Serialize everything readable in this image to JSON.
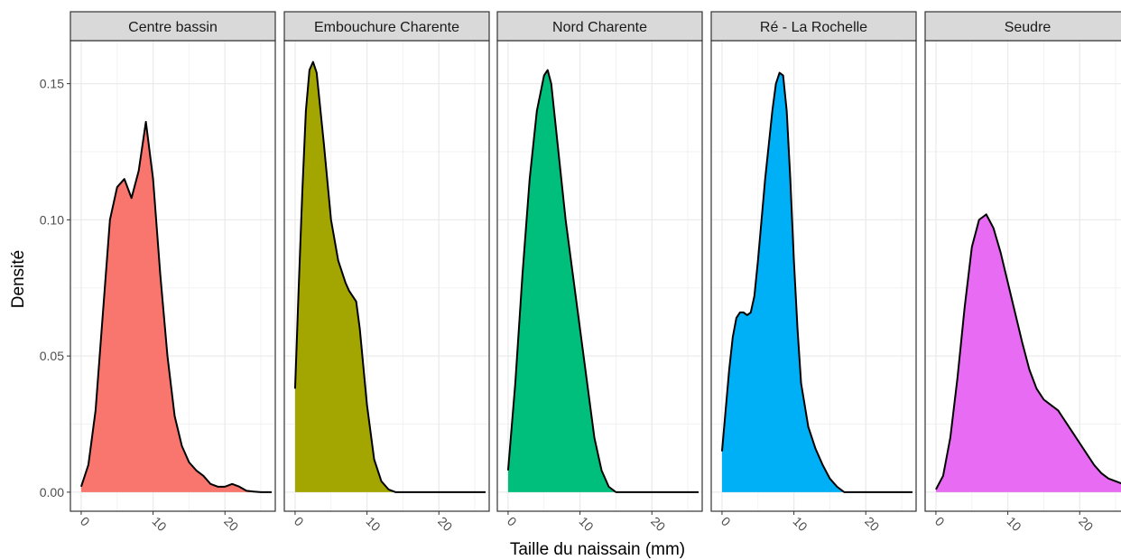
{
  "chart_data": {
    "type": "area",
    "xlabel": "Taille du naissain (mm)",
    "ylabel": "Densité",
    "xlim": [
      -1.5,
      27
    ],
    "ylim": [
      -0.007,
      0.1658
    ],
    "x_ticks": [
      0,
      10,
      20
    ],
    "x_tick_labels": [
      "0",
      "10",
      "20"
    ],
    "y_ticks": [
      0.0,
      0.05,
      0.1,
      0.15
    ],
    "y_tick_labels": [
      "0.00",
      "0.05",
      "0.10",
      "0.15"
    ],
    "grid": true,
    "legend": "none",
    "facets": [
      {
        "name": "Centre bassin",
        "color": "#F8766D",
        "x": [
          0,
          1,
          2,
          3,
          4,
          5,
          6,
          7,
          8,
          9,
          10,
          11,
          12,
          13,
          14,
          15,
          16,
          17,
          18,
          19,
          20,
          21,
          22,
          23,
          24,
          25,
          26.5
        ],
        "y": [
          0.002,
          0.01,
          0.03,
          0.065,
          0.1,
          0.112,
          0.115,
          0.108,
          0.118,
          0.136,
          0.115,
          0.08,
          0.05,
          0.028,
          0.017,
          0.011,
          0.008,
          0.006,
          0.003,
          0.002,
          0.002,
          0.003,
          0.002,
          0.0005,
          0.0002,
          0.0,
          0.0
        ]
      },
      {
        "name": "Embouchure Charente",
        "color": "#A3A500",
        "x": [
          0,
          0.5,
          1,
          1.5,
          2,
          2.5,
          3,
          4,
          5,
          6,
          7,
          7.5,
          8,
          8.5,
          9,
          10,
          11,
          12,
          13,
          14,
          26.5
        ],
        "y": [
          0.038,
          0.075,
          0.11,
          0.14,
          0.155,
          0.158,
          0.154,
          0.128,
          0.1,
          0.085,
          0.077,
          0.074,
          0.072,
          0.07,
          0.06,
          0.032,
          0.012,
          0.004,
          0.001,
          0.0,
          0.0
        ]
      },
      {
        "name": "Nord Charente",
        "color": "#00BF7D",
        "x": [
          0,
          1,
          2,
          3,
          4,
          5,
          5.5,
          6,
          7,
          8,
          9,
          10,
          11,
          12,
          13,
          14,
          15,
          26.5
        ],
        "y": [
          0.008,
          0.04,
          0.08,
          0.115,
          0.14,
          0.153,
          0.155,
          0.15,
          0.125,
          0.1,
          0.08,
          0.06,
          0.04,
          0.02,
          0.008,
          0.002,
          0.0,
          0.0
        ]
      },
      {
        "name": "Ré - La Rochelle",
        "color": "#00B0F6",
        "x": [
          0,
          0.5,
          1,
          1.5,
          2,
          2.5,
          3,
          3.5,
          4,
          4.5,
          5,
          6,
          7,
          7.5,
          8,
          8.5,
          9,
          9.5,
          10,
          10.5,
          11,
          12,
          13,
          14,
          15,
          16,
          17,
          26.5
        ],
        "y": [
          0.015,
          0.03,
          0.045,
          0.057,
          0.064,
          0.066,
          0.066,
          0.065,
          0.066,
          0.072,
          0.085,
          0.115,
          0.14,
          0.15,
          0.154,
          0.153,
          0.14,
          0.115,
          0.085,
          0.06,
          0.04,
          0.024,
          0.016,
          0.01,
          0.005,
          0.002,
          0.0,
          0.0
        ]
      },
      {
        "name": "Seudre",
        "color": "#E76BF3",
        "x": [
          0,
          1,
          2,
          3,
          4,
          5,
          6,
          7,
          8,
          9,
          10,
          11,
          12,
          13,
          14,
          15,
          16,
          17,
          18,
          19,
          20,
          21,
          22,
          23,
          24,
          25,
          26,
          27
        ],
        "y": [
          0.001,
          0.006,
          0.02,
          0.042,
          0.068,
          0.09,
          0.1,
          0.102,
          0.097,
          0.088,
          0.077,
          0.066,
          0.055,
          0.045,
          0.038,
          0.034,
          0.032,
          0.03,
          0.026,
          0.022,
          0.018,
          0.014,
          0.01,
          0.007,
          0.005,
          0.004,
          0.003,
          0.002
        ]
      }
    ]
  }
}
